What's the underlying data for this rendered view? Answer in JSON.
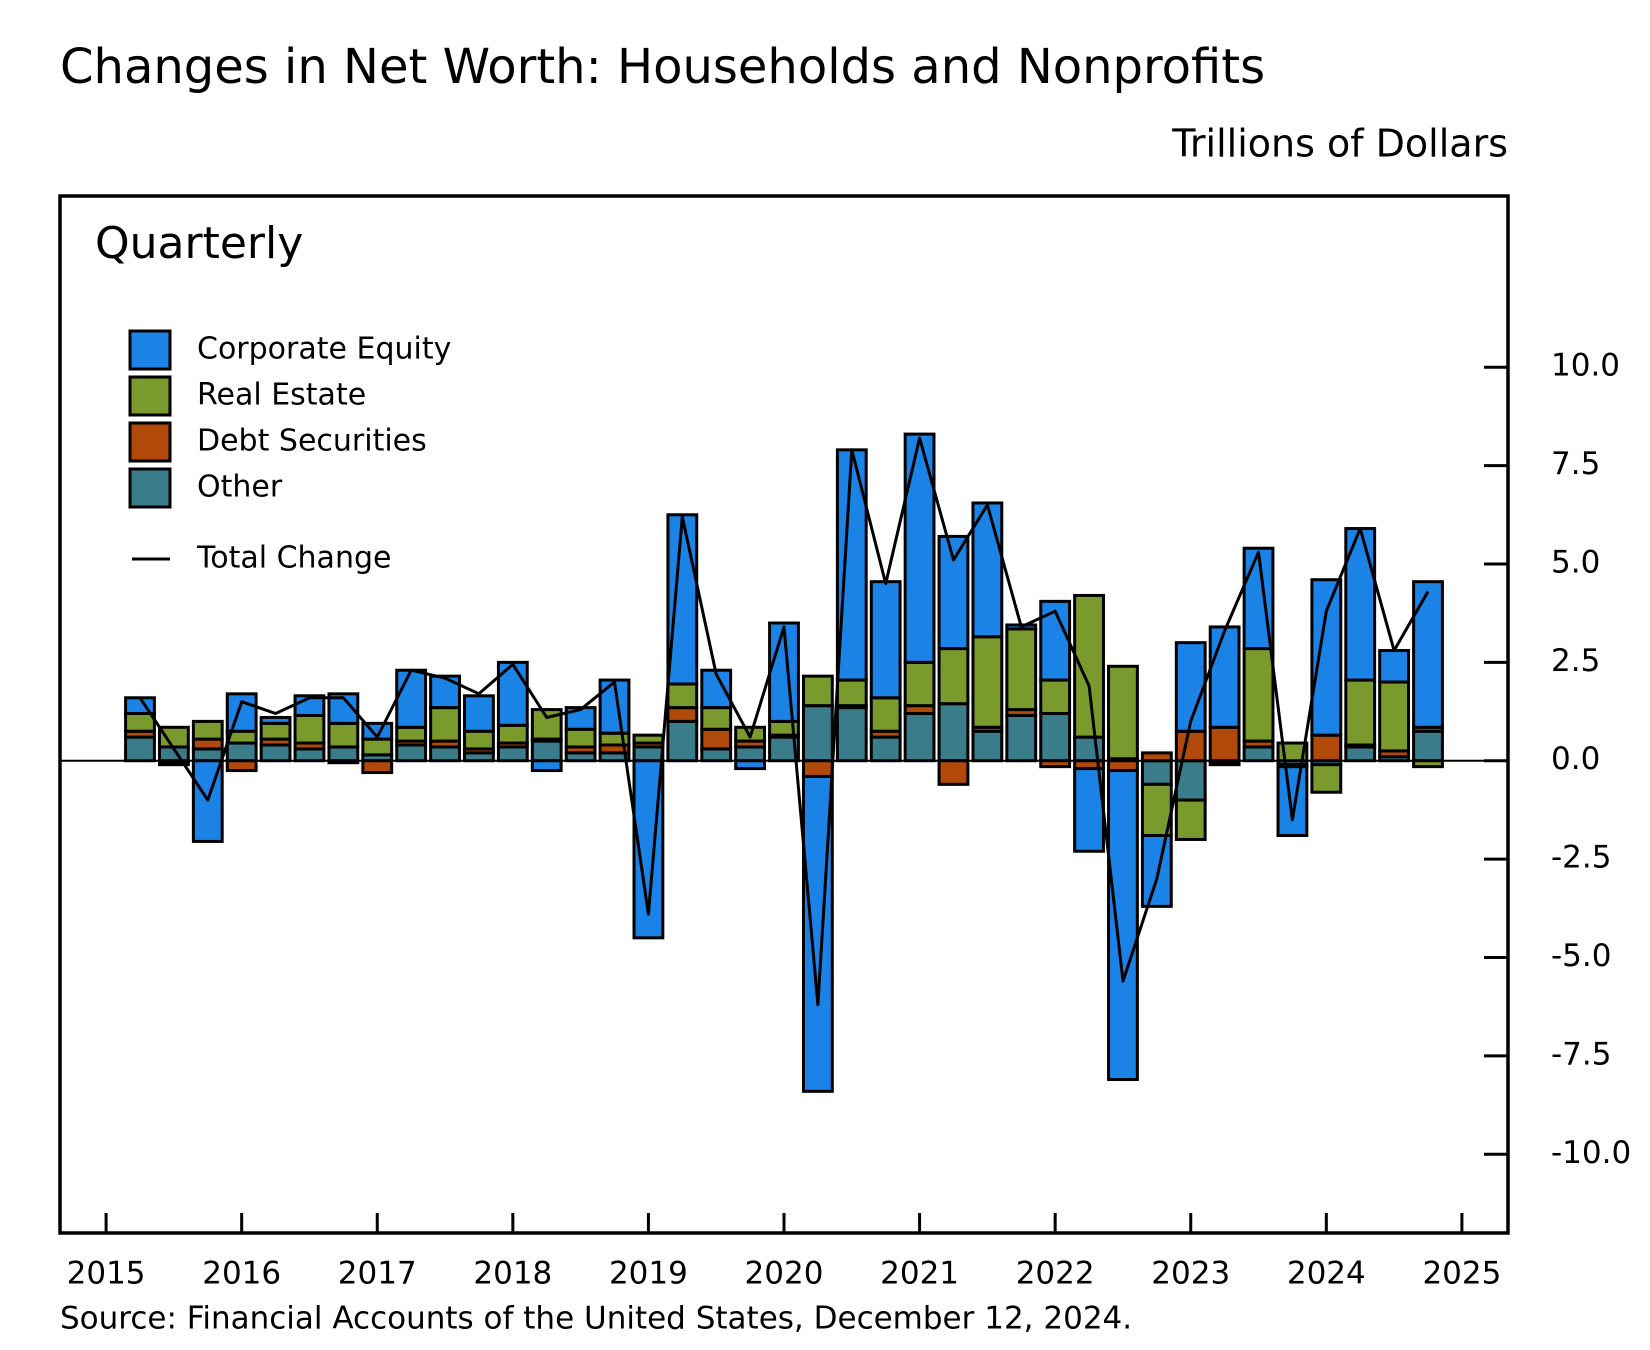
{
  "chart_data": {
    "type": "bar",
    "stacked": true,
    "title": "Changes in Net Worth: Households and Nonprofits",
    "subtitle": "Trillions of Dollars",
    "annotation": "Quarterly",
    "source": "Source: Financial Accounts of the United States, December 12, 2024.",
    "x": [
      2015.25,
      2015.5,
      2015.75,
      2016,
      2016.25,
      2016.5,
      2016.75,
      2017,
      2017.25,
      2017.5,
      2017.75,
      2018,
      2018.25,
      2018.5,
      2018.75,
      2019,
      2019.25,
      2019.5,
      2019.75,
      2020,
      2020.25,
      2020.5,
      2020.75,
      2021,
      2021.25,
      2021.5,
      2021.75,
      2022,
      2022.25,
      2022.5,
      2022.75,
      2023,
      2023.25,
      2023.5,
      2023.75,
      2024,
      2024.25,
      2024.5,
      2024.75
    ],
    "series": [
      {
        "name": "Corporate Equity",
        "color": "#1b82e6",
        "values": [
          0.4,
          -0.05,
          -2.05,
          0.95,
          0.15,
          0.5,
          0.75,
          0.4,
          1.45,
          0.8,
          0.9,
          1.6,
          -0.25,
          0.55,
          1.35,
          -4.5,
          4.3,
          0.95,
          -0.2,
          2.5,
          -8.0,
          5.85,
          2.95,
          5.8,
          2.85,
          3.4,
          0.1,
          2.0,
          -2.1,
          -7.85,
          -1.8,
          2.25,
          2.55,
          2.55,
          -1.75,
          3.95,
          3.85,
          0.8,
          3.7
        ]
      },
      {
        "name": "Real Estate",
        "color": "#7b9a2d",
        "values": [
          0.45,
          0.5,
          0.45,
          0.3,
          0.4,
          0.7,
          0.6,
          0.4,
          0.35,
          0.85,
          0.45,
          0.45,
          0.75,
          0.45,
          0.3,
          0.2,
          0.6,
          0.55,
          0.35,
          0.35,
          0.75,
          0.65,
          0.85,
          1.1,
          1.4,
          2.3,
          2.05,
          0.85,
          3.6,
          2.35,
          -1.3,
          -1.0,
          -0.05,
          2.35,
          0.45,
          -0.7,
          1.65,
          1.75,
          -0.15
        ]
      },
      {
        "name": "Debt Securities",
        "color": "#b0490a",
        "values": [
          0.15,
          -0.05,
          0.25,
          -0.25,
          0.15,
          0.15,
          -0.05,
          -0.3,
          0.1,
          0.15,
          0.1,
          0.1,
          0.05,
          0.15,
          0.2,
          0.1,
          0.35,
          0.5,
          0.15,
          0.05,
          -0.4,
          0.05,
          0.15,
          0.2,
          -0.6,
          0.1,
          0.15,
          -0.15,
          -0.2,
          -0.25,
          0.2,
          0.75,
          0.85,
          0.15,
          -0.05,
          0.65,
          0.05,
          0.15,
          0.1
        ]
      },
      {
        "name": "Other",
        "color": "#3b7c8b",
        "values": [
          0.6,
          0.35,
          0.3,
          0.45,
          0.4,
          0.3,
          0.35,
          0.15,
          0.4,
          0.35,
          0.2,
          0.35,
          0.5,
          0.2,
          0.2,
          0.35,
          1.0,
          0.3,
          0.35,
          0.6,
          1.4,
          1.35,
          0.6,
          1.2,
          1.45,
          0.75,
          1.15,
          1.2,
          0.6,
          0.05,
          -0.6,
          -1.0,
          -0.05,
          0.35,
          -0.1,
          -0.1,
          0.35,
          0.1,
          0.75
        ]
      },
      {
        "name": "Total Change",
        "type": "line",
        "color": "#000000",
        "values": [
          1.6,
          0.3,
          -1.0,
          1.5,
          1.2,
          1.6,
          1.6,
          0.6,
          2.3,
          2.1,
          1.7,
          2.45,
          1.1,
          1.3,
          2.0,
          -3.9,
          6.2,
          2.2,
          0.6,
          3.4,
          -6.2,
          7.9,
          4.5,
          8.2,
          5.1,
          6.5,
          3.4,
          3.8,
          1.9,
          -5.6,
          -3.0,
          1.0,
          3.3,
          5.3,
          -1.5,
          3.8,
          5.9,
          2.8,
          4.3
        ]
      }
    ],
    "xlim": [
      2014.66,
      2025.34
    ],
    "xticks": [
      2015,
      2016,
      2017,
      2018,
      2019,
      2020,
      2021,
      2022,
      2023,
      2024,
      2025
    ],
    "ylim": [
      -12.0,
      14.35
    ],
    "yticks": [
      {
        "value": -10,
        "label": "-10.0"
      },
      -7.5,
      {
        "value": -5,
        "label": "-5.0"
      },
      -2.5,
      {
        "value": 0,
        "label": "0.0"
      },
      2.5,
      {
        "value": 5,
        "label": "5.0"
      },
      7.5,
      {
        "value": 10,
        "label": "10.0"
      }
    ],
    "legend": "upper left"
  }
}
